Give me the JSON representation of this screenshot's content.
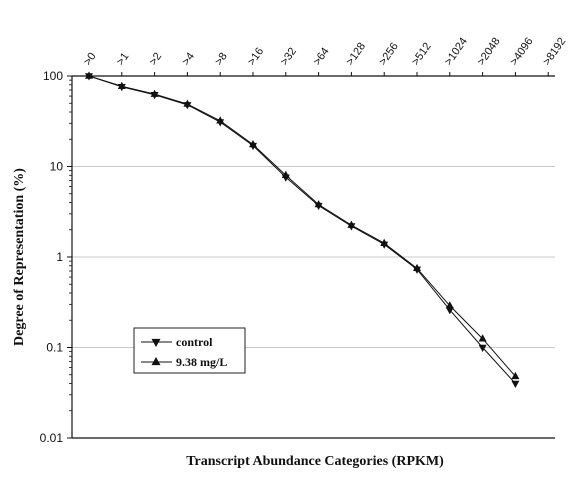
{
  "chart_data": {
    "type": "line",
    "title": "",
    "xlabel": "Transcript Abundance Categories (RPKM)",
    "ylabel": "Degree of Representation (%)",
    "categories": [
      ">0",
      ">1",
      ">2",
      ">4",
      ">8",
      ">16",
      ">32",
      ">64",
      ">128",
      ">256",
      ">512",
      ">1024",
      ">2048",
      ">4096",
      ">8192"
    ],
    "y_scale": "log",
    "ylim": [
      0.01,
      100
    ],
    "y_ticks": [
      {
        "value": 0.01,
        "label": "0.01"
      },
      {
        "value": 0.1,
        "label": "0.1"
      },
      {
        "value": 1,
        "label": "1"
      },
      {
        "value": 10,
        "label": "10"
      },
      {
        "value": 100,
        "label": "100"
      }
    ],
    "grid": "horizontal",
    "legend_position": "bottom-left",
    "series": [
      {
        "name": "control",
        "marker": "triangle-down",
        "values": [
          100,
          76,
          62,
          48,
          31,
          17,
          7.6,
          3.7,
          2.2,
          1.38,
          0.73,
          0.26,
          0.1,
          0.04,
          null
        ]
      },
      {
        "name": "9.38 mg/L",
        "marker": "triangle-up",
        "values": [
          100,
          77,
          63,
          49,
          32,
          17.5,
          8.0,
          3.8,
          2.25,
          1.42,
          0.75,
          0.29,
          0.125,
          0.048,
          null
        ]
      }
    ]
  }
}
